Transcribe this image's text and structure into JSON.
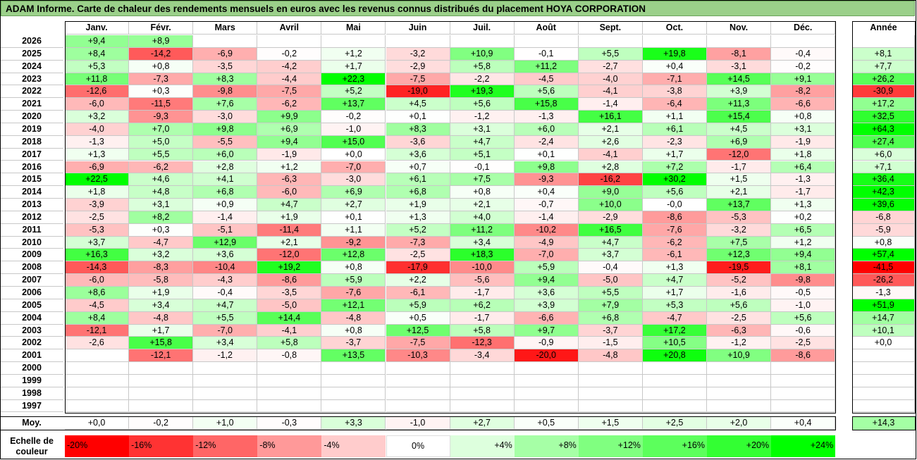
{
  "title": "ADAM Informe. Carte de chaleur des rendements mensuels en euros avec les revenus connus distribués du placement HOYA CORPORATION",
  "chart_data": {
    "type": "heatmap",
    "months": [
      "Janv.",
      "Févr.",
      "Mars",
      "Avril",
      "Mai",
      "Juin",
      "Juil.",
      "Août",
      "Sept.",
      "Oct.",
      "Nov.",
      "Déc."
    ],
    "year_header": "Année",
    "rows": [
      {
        "year": "2026",
        "m": [
          "+9,4",
          "+8,9",
          "",
          "",
          "",
          "",
          "",
          "",
          "",
          "",
          "",
          ""
        ],
        "a": ""
      },
      {
        "year": "2025",
        "m": [
          "+8,4",
          "-14,2",
          "-6,9",
          "-0,2",
          "+1,2",
          "-3,2",
          "+10,9",
          "-0,1",
          "+5,5",
          "+19,8",
          "-8,1",
          "-0,4"
        ],
        "a": "+8,1"
      },
      {
        "year": "2024",
        "m": [
          "+5,3",
          "+0,8",
          "-3,5",
          "-4,2",
          "+1,7",
          "-2,9",
          "+5,8",
          "+11,2",
          "-2,7",
          "+0,4",
          "-3,1",
          "-0,2"
        ],
        "a": "+7,7"
      },
      {
        "year": "2023",
        "m": [
          "+11,8",
          "-7,3",
          "+8,3",
          "-4,4",
          "+22,3",
          "-7,5",
          "-2,2",
          "-4,5",
          "-4,0",
          "-7,1",
          "+14,5",
          "+9,1"
        ],
        "a": "+26,2"
      },
      {
        "year": "2022",
        "m": [
          "-12,6",
          "+0,3",
          "-9,8",
          "-7,5",
          "+5,2",
          "-19,0",
          "+19,3",
          "+5,6",
          "-4,1",
          "-3,8",
          "+3,9",
          "-8,2"
        ],
        "a": "-30,9"
      },
      {
        "year": "2021",
        "m": [
          "-6,0",
          "-11,5",
          "+7,6",
          "-6,2",
          "+13,7",
          "+4,5",
          "+5,6",
          "+15,8",
          "-1,4",
          "-6,4",
          "+11,3",
          "-6,6"
        ],
        "a": "+17,2"
      },
      {
        "year": "2020",
        "m": [
          "+3,2",
          "-9,3",
          "-3,0",
          "+9,9",
          "-0,2",
          "+0,1",
          "-1,2",
          "-1,3",
          "+16,1",
          "+1,1",
          "+15,4",
          "+0,8"
        ],
        "a": "+32,5"
      },
      {
        "year": "2019",
        "m": [
          "-4,0",
          "+7,0",
          "+9,8",
          "+6,9",
          "-1,0",
          "+8,3",
          "+3,1",
          "+6,0",
          "+2,1",
          "+6,1",
          "+4,5",
          "+3,1"
        ],
        "a": "+64,3"
      },
      {
        "year": "2018",
        "m": [
          "-1,3",
          "+5,0",
          "-5,5",
          "+9,4",
          "+15,0",
          "-3,6",
          "+4,7",
          "-2,4",
          "+2,6",
          "-2,3",
          "+6,9",
          "-1,9"
        ],
        "a": "+27,4"
      },
      {
        "year": "2017",
        "m": [
          "+1,3",
          "+5,5",
          "+6,0",
          "-1,9",
          "+0,0",
          "+3,6",
          "+5,1",
          "+0,1",
          "-4,1",
          "+1,7",
          "-12,0",
          "+1,8"
        ],
        "a": "+6,0"
      },
      {
        "year": "2016",
        "m": [
          "-6,9",
          "-6,2",
          "+2,8",
          "+1,2",
          "-7,0",
          "+0,7",
          "-0,1",
          "+9,8",
          "+2,8",
          "+7,2",
          "-1,7",
          "+6,4"
        ],
        "a": "+7,1"
      },
      {
        "year": "2015",
        "m": [
          "+22,5",
          "+4,6",
          "+4,1",
          "-6,3",
          "-3,0",
          "+6,1",
          "+7,5",
          "-9,3",
          "-16,2",
          "+30,2",
          "+1,5",
          "-1,3"
        ],
        "a": "+36,4"
      },
      {
        "year": "2014",
        "m": [
          "+1,8",
          "+4,8",
          "+6,8",
          "-6,0",
          "+6,9",
          "+6,8",
          "+0,8",
          "+0,4",
          "+9,0",
          "+5,6",
          "+2,1",
          "-1,7"
        ],
        "a": "+42,3"
      },
      {
        "year": "2013",
        "m": [
          "-3,9",
          "+3,1",
          "+0,9",
          "+4,7",
          "+2,7",
          "+1,9",
          "+2,1",
          "-0,7",
          "+10,0",
          "-0,0",
          "+13,7",
          "+1,3"
        ],
        "a": "+39,6"
      },
      {
        "year": "2012",
        "m": [
          "-2,5",
          "+8,2",
          "-1,4",
          "+1,9",
          "+0,1",
          "+1,3",
          "+4,0",
          "-1,4",
          "-2,9",
          "-8,6",
          "-5,3",
          "+0,2"
        ],
        "a": "-6,8"
      },
      {
        "year": "2011",
        "m": [
          "-5,3",
          "+0,3",
          "-5,1",
          "-11,4",
          "+1,1",
          "+5,2",
          "+11,2",
          "-10,2",
          "+16,5",
          "-7,6",
          "-3,2",
          "+6,5"
        ],
        "a": "-5,9"
      },
      {
        "year": "2010",
        "m": [
          "+3,7",
          "-4,7",
          "+12,9",
          "+2,1",
          "-9,2",
          "-7,3",
          "+3,4",
          "-4,9",
          "+4,7",
          "-6,2",
          "+7,5",
          "+1,2"
        ],
        "a": "+0,8"
      },
      {
        "year": "2009",
        "m": [
          "+16,3",
          "+3,2",
          "+3,6",
          "-12,0",
          "+12,8",
          "-2,5",
          "+18,3",
          "-7,0",
          "+3,7",
          "-6,1",
          "+12,3",
          "+9,4"
        ],
        "a": "+57,4"
      },
      {
        "year": "2008",
        "m": [
          "-14,3",
          "-8,3",
          "-10,4",
          "+19,2",
          "+0,8",
          "-17,9",
          "-10,0",
          "+5,9",
          "-0,4",
          "+1,3",
          "-19,5",
          "+8,1"
        ],
        "a": "-41,5"
      },
      {
        "year": "2007",
        "m": [
          "-6,0",
          "-5,8",
          "-4,3",
          "-8,6",
          "+5,9",
          "+2,2",
          "-5,6",
          "+9,4",
          "-5,0",
          "+4,7",
          "-5,2",
          "-9,8"
        ],
        "a": "-26,2"
      },
      {
        "year": "2006",
        "m": [
          "+8,6",
          "+1,9",
          "-0,4",
          "-3,5",
          "-7,6",
          "-6,1",
          "-1,7",
          "+3,6",
          "+5,5",
          "+1,7",
          "-1,6",
          "-0,5"
        ],
        "a": "-1,3"
      },
      {
        "year": "2005",
        "m": [
          "-4,5",
          "+3,4",
          "+4,7",
          "-5,0",
          "+12,1",
          "+5,9",
          "+6,2",
          "+3,9",
          "+7,9",
          "+5,3",
          "+5,6",
          "-1,0"
        ],
        "a": "+51,9"
      },
      {
        "year": "2004",
        "m": [
          "+8,4",
          "-4,8",
          "+5,5",
          "+14,4",
          "-4,8",
          "+0,5",
          "-1,7",
          "-6,6",
          "+6,8",
          "-4,7",
          "-2,5",
          "+5,6"
        ],
        "a": "+14,7"
      },
      {
        "year": "2003",
        "m": [
          "-12,1",
          "+1,7",
          "-7,0",
          "-4,1",
          "+0,8",
          "+12,5",
          "+5,8",
          "+9,7",
          "-3,7",
          "+17,2",
          "-6,3",
          "-0,6"
        ],
        "a": "+10,1"
      },
      {
        "year": "2002",
        "m": [
          "-2,6",
          "+15,8",
          "+3,4",
          "+5,8",
          "-3,7",
          "-7,5",
          "-12,3",
          "-0,9",
          "-1,5",
          "+10,5",
          "-1,2",
          "-2,5"
        ],
        "a": "+0,0"
      },
      {
        "year": "2001",
        "m": [
          "",
          "-12,1",
          "-1,2",
          "-0,8",
          "+13,5",
          "-10,3",
          "-3,4",
          "-20,0",
          "-4,8",
          "+20,8",
          "+10,9",
          "-8,6"
        ],
        "a": ""
      },
      {
        "year": "2000",
        "m": [
          "",
          "",
          "",
          "",
          "",
          "",
          "",
          "",
          "",
          "",
          "",
          ""
        ],
        "a": ""
      },
      {
        "year": "1999",
        "m": [
          "",
          "",
          "",
          "",
          "",
          "",
          "",
          "",
          "",
          "",
          "",
          ""
        ],
        "a": ""
      },
      {
        "year": "1998",
        "m": [
          "",
          "",
          "",
          "",
          "",
          "",
          "",
          "",
          "",
          "",
          "",
          ""
        ],
        "a": ""
      },
      {
        "year": "1997",
        "m": [
          "",
          "",
          "",
          "",
          "",
          "",
          "",
          "",
          "",
          "",
          "",
          ""
        ],
        "a": ""
      }
    ],
    "avg_label": "Moy.",
    "avg": [
      "+0,0",
      "-0,2",
      "+1,0",
      "-0,3",
      "+3,3",
      "-1,0",
      "+2,7",
      "+0,5",
      "+1,5",
      "+2,5",
      "+2,0",
      "+0,4"
    ],
    "avg_year": "+14,3",
    "scale_label_line1": "Echelle de",
    "scale_label_line2": "couleur",
    "scale": [
      {
        "label": "-20%",
        "color": "#ff0000"
      },
      {
        "label": "-16%",
        "color": "#ff3333"
      },
      {
        "label": "-12%",
        "color": "#ff6666"
      },
      {
        "label": "-8%",
        "color": "#ff9999"
      },
      {
        "label": "-4%",
        "color": "#ffcccc"
      },
      {
        "label": "0%",
        "color": "#ffffff"
      },
      {
        "label": "+4%",
        "color": "#ddffdd"
      },
      {
        "label": "+8%",
        "color": "#a6ffa6"
      },
      {
        "label": "+12%",
        "color": "#80ff80"
      },
      {
        "label": "+16%",
        "color": "#5cff5c"
      },
      {
        "label": "+20%",
        "color": "#33ff33"
      },
      {
        "label": "+24%",
        "color": "#00ff00"
      }
    ]
  }
}
